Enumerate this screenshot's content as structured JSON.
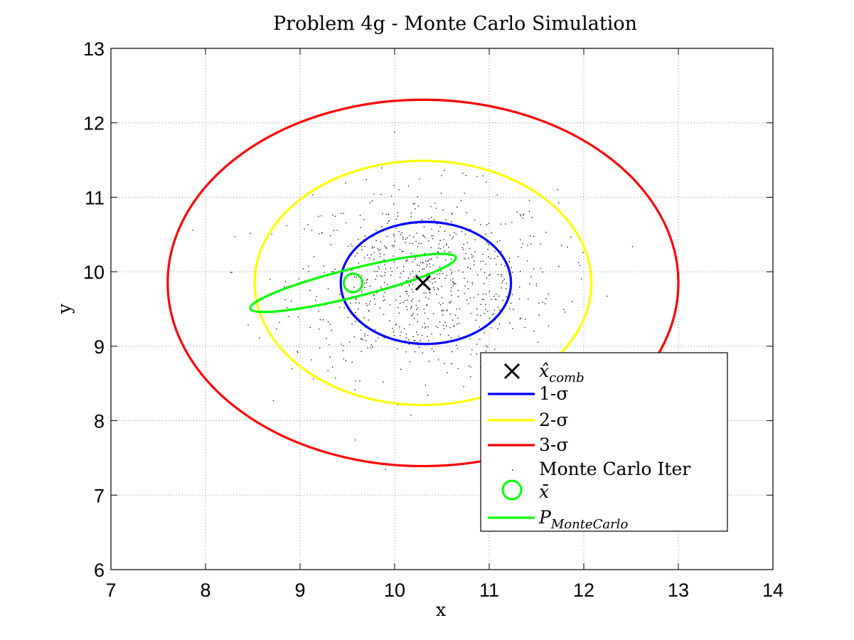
{
  "chart_data": {
    "type": "scatter",
    "title": "Problem 4g - Monte Carlo Simulation",
    "xlabel": "x",
    "ylabel": "y",
    "xlim": [
      7,
      14
    ],
    "ylim": [
      6,
      13
    ],
    "xticks": [
      7,
      8,
      9,
      10,
      11,
      12,
      13,
      14
    ],
    "yticks": [
      6,
      7,
      8,
      9,
      10,
      11,
      12,
      13
    ],
    "grid": true,
    "legend_position": "bottom-right",
    "legend": [
      {
        "key": "xhat",
        "label": "x̂",
        "sub": "comb",
        "marker": "x",
        "color": "#000000"
      },
      {
        "key": "s1",
        "label": "1-σ",
        "sub": "",
        "marker": "line",
        "color": "#0000ff"
      },
      {
        "key": "s2",
        "label": "2-σ",
        "sub": "",
        "marker": "line",
        "color": "#ffff00"
      },
      {
        "key": "s3",
        "label": "3-σ",
        "sub": "",
        "marker": "line",
        "color": "#ff0000"
      },
      {
        "key": "mc",
        "label": "Monte Carlo Iter",
        "sub": "",
        "marker": "dot",
        "color": "#000000"
      },
      {
        "key": "xbar",
        "label": "x̄",
        "sub": "",
        "marker": "circle",
        "color": "#00ff00"
      },
      {
        "key": "pmc",
        "label": "P",
        "sub": "MonteCarlo",
        "marker": "line",
        "color": "#00ff00"
      }
    ],
    "x_hat_comb": [
      10.3,
      9.85
    ],
    "x_bar": [
      9.56,
      9.85
    ],
    "ellipses": [
      {
        "name": "1-σ",
        "color": "#0000ff",
        "center": [
          10.33,
          9.85
        ],
        "semi_x": 0.9,
        "semi_y": 0.82,
        "angle_deg": 0
      },
      {
        "name": "2-σ",
        "color": "#ffff00",
        "center": [
          10.3,
          9.85
        ],
        "semi_x": 1.78,
        "semi_y": 1.64,
        "angle_deg": 0
      },
      {
        "name": "3-σ",
        "color": "#ff0000",
        "center": [
          10.3,
          9.85
        ],
        "semi_x": 2.7,
        "semi_y": 2.46,
        "angle_deg": 0
      },
      {
        "name": "P_MonteCarlo",
        "color": "#00ff00",
        "center": [
          9.56,
          9.85
        ],
        "semi_x": 1.12,
        "semi_y": 0.19,
        "angle_deg": -14
      }
    ],
    "monte_carlo_points": {
      "count": 800,
      "mean": [
        10.3,
        9.85
      ],
      "std": [
        0.7,
        0.62
      ]
    }
  }
}
